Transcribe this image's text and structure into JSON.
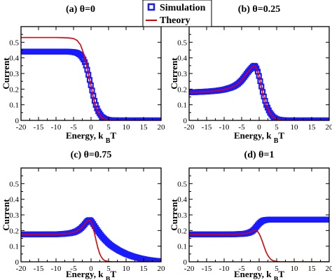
{
  "colors": {
    "simulation": "#1a1aff",
    "theory": "#e00000",
    "frame": "#000000",
    "background": "#ffffff"
  },
  "legend": {
    "simulation_label": "Simulation",
    "theory_label": "Theory",
    "simulation_marker": "open-square",
    "theory_marker": "line"
  },
  "chart_data": [
    {
      "type": "line",
      "title": "(a) θ=0",
      "xlabel": "Energy, kBT",
      "ylabel": "Current",
      "xlim": [
        -20,
        20
      ],
      "ylim": [
        0,
        0.6
      ],
      "xticks": [
        -20,
        -15,
        -10,
        -5,
        0,
        5,
        10,
        15,
        20
      ],
      "yticks": [
        0,
        0.1,
        0.2,
        0.3,
        0.4,
        0.5
      ],
      "grid": false,
      "series": [
        {
          "name": "Simulation",
          "style": "marker",
          "x": [
            -20,
            -18,
            -16,
            -14,
            -12,
            -10,
            -8,
            -6,
            -5,
            -4,
            -3,
            -2,
            -1.5,
            -1,
            -0.5,
            0,
            0.5,
            1,
            1.5,
            2,
            3,
            4,
            5,
            6,
            8,
            10,
            12,
            14,
            16,
            18,
            20
          ],
          "y": [
            0.44,
            0.44,
            0.44,
            0.44,
            0.44,
            0.44,
            0.44,
            0.439,
            0.437,
            0.432,
            0.418,
            0.385,
            0.355,
            0.316,
            0.268,
            0.22,
            0.172,
            0.125,
            0.088,
            0.06,
            0.025,
            0.009,
            0.003,
            0.001,
            0,
            0,
            0,
            0,
            0,
            0,
            0
          ]
        },
        {
          "name": "Theory",
          "style": "line",
          "x": [
            -20,
            -18,
            -16,
            -14,
            -12,
            -10,
            -8,
            -6,
            -5,
            -4,
            -3,
            -2,
            -1.5,
            -1,
            -0.5,
            0,
            0.5,
            1,
            1.5,
            2,
            3,
            4,
            5,
            6,
            8,
            10,
            12,
            14,
            16,
            18,
            20
          ],
          "y": [
            0.53,
            0.53,
            0.53,
            0.53,
            0.53,
            0.53,
            0.529,
            0.527,
            0.523,
            0.512,
            0.483,
            0.42,
            0.375,
            0.323,
            0.27,
            0.22,
            0.165,
            0.118,
            0.08,
            0.052,
            0.02,
            0.007,
            0.002,
            0.001,
            0,
            0,
            0,
            0,
            0,
            0,
            0
          ]
        }
      ]
    },
    {
      "type": "line",
      "title": "(b) θ=0.25",
      "xlabel": "Energy, kBT",
      "ylabel": "Current",
      "xlim": [
        -20,
        20
      ],
      "ylim": [
        0,
        0.6
      ],
      "xticks": [
        -20,
        -15,
        -10,
        -5,
        0,
        5,
        10,
        15,
        20
      ],
      "yticks": [
        0,
        0.1,
        0.2,
        0.3,
        0.4,
        0.5
      ],
      "grid": false,
      "series": [
        {
          "name": "Simulation",
          "style": "marker",
          "x": [
            -20,
            -18,
            -16,
            -14,
            -12,
            -10,
            -8,
            -7,
            -6,
            -5,
            -4,
            -3,
            -2,
            -1.5,
            -1,
            -0.5,
            0,
            0.5,
            1,
            1.5,
            2,
            3,
            4,
            5,
            6,
            8,
            10,
            12,
            14,
            16,
            18,
            20
          ],
          "y": [
            0.18,
            0.181,
            0.183,
            0.186,
            0.19,
            0.197,
            0.21,
            0.22,
            0.235,
            0.256,
            0.285,
            0.315,
            0.34,
            0.35,
            0.345,
            0.32,
            0.28,
            0.232,
            0.182,
            0.14,
            0.102,
            0.052,
            0.022,
            0.008,
            0.003,
            0,
            0,
            0,
            0,
            0,
            0,
            0
          ]
        },
        {
          "name": "Theory",
          "style": "line",
          "x": [
            -20,
            -18,
            -16,
            -14,
            -12,
            -10,
            -8,
            -7,
            -6,
            -5,
            -4,
            -3,
            -2,
            -1.5,
            -1,
            -0.5,
            0,
            0.5,
            1,
            1.5,
            2,
            3,
            4,
            5,
            6,
            8,
            10,
            12,
            14,
            16,
            18,
            20
          ],
          "y": [
            0.18,
            0.181,
            0.183,
            0.186,
            0.19,
            0.197,
            0.21,
            0.22,
            0.235,
            0.256,
            0.285,
            0.315,
            0.34,
            0.348,
            0.342,
            0.318,
            0.278,
            0.23,
            0.18,
            0.138,
            0.1,
            0.05,
            0.021,
            0.008,
            0.003,
            0,
            0,
            0,
            0,
            0,
            0,
            0
          ]
        }
      ]
    },
    {
      "type": "line",
      "title": "(c) θ=0.75",
      "xlabel": "Energy, kBT",
      "ylabel": "Current",
      "xlim": [
        -20,
        20
      ],
      "ylim": [
        0,
        0.6
      ],
      "xticks": [
        -20,
        -15,
        -10,
        -5,
        0,
        5,
        10,
        15,
        20
      ],
      "yticks": [
        0,
        0.1,
        0.2,
        0.3,
        0.4,
        0.5
      ],
      "grid": false,
      "series": [
        {
          "name": "Simulation",
          "style": "marker",
          "x": [
            -20,
            -18,
            -16,
            -14,
            -12,
            -10,
            -8,
            -6,
            -5,
            -4,
            -3,
            -2,
            -1.5,
            -1,
            -0.5,
            0,
            0.5,
            1,
            2,
            3,
            4,
            5,
            6,
            8,
            10,
            12,
            14,
            16,
            18,
            20
          ],
          "y": [
            0.175,
            0.175,
            0.175,
            0.175,
            0.176,
            0.176,
            0.178,
            0.183,
            0.188,
            0.197,
            0.212,
            0.235,
            0.25,
            0.262,
            0.268,
            0.262,
            0.247,
            0.228,
            0.195,
            0.165,
            0.14,
            0.118,
            0.1,
            0.072,
            0.05,
            0.034,
            0.022,
            0.013,
            0.007,
            0.003
          ]
        },
        {
          "name": "Theory",
          "style": "line",
          "x": [
            -20,
            -18,
            -16,
            -14,
            -12,
            -10,
            -8,
            -6,
            -5,
            -4,
            -3,
            -2,
            -1.5,
            -1,
            -0.5,
            0,
            0.5,
            1,
            1.5,
            2,
            2.5,
            3,
            3.5,
            4,
            5,
            6,
            8,
            10,
            12,
            14,
            16,
            18,
            20
          ],
          "y": [
            0.175,
            0.175,
            0.175,
            0.175,
            0.176,
            0.176,
            0.178,
            0.183,
            0.188,
            0.197,
            0.212,
            0.235,
            0.25,
            0.262,
            0.265,
            0.255,
            0.225,
            0.18,
            0.13,
            0.085,
            0.05,
            0.028,
            0.014,
            0.007,
            0.002,
            0,
            0,
            0,
            0,
            0,
            0,
            0,
            0
          ]
        }
      ]
    },
    {
      "type": "line",
      "title": "(d) θ=1",
      "xlabel": "Energy, kBT",
      "ylabel": "Current",
      "xlim": [
        -20,
        20
      ],
      "ylim": [
        0,
        0.6
      ],
      "xticks": [
        -20,
        -15,
        -10,
        -5,
        0,
        5,
        10,
        15,
        20
      ],
      "yticks": [
        0,
        0.1,
        0.2,
        0.3,
        0.4,
        0.5
      ],
      "grid": false,
      "series": [
        {
          "name": "Simulation",
          "style": "marker",
          "x": [
            -20,
            -18,
            -16,
            -14,
            -12,
            -10,
            -8,
            -6,
            -5,
            -4,
            -3,
            -2,
            -1.5,
            -1,
            -0.5,
            0,
            0.5,
            1,
            1.5,
            2,
            3,
            4,
            5,
            6,
            8,
            10,
            12,
            14,
            16,
            18,
            20
          ],
          "y": [
            0.175,
            0.175,
            0.175,
            0.175,
            0.175,
            0.175,
            0.176,
            0.177,
            0.178,
            0.18,
            0.185,
            0.195,
            0.205,
            0.218,
            0.232,
            0.245,
            0.255,
            0.262,
            0.266,
            0.268,
            0.27,
            0.27,
            0.27,
            0.27,
            0.27,
            0.27,
            0.27,
            0.27,
            0.27,
            0.27,
            0.27
          ]
        },
        {
          "name": "Theory",
          "style": "line",
          "x": [
            -20,
            -18,
            -16,
            -14,
            -12,
            -10,
            -8,
            -6,
            -5,
            -4,
            -3,
            -2,
            -1.5,
            -1,
            -0.5,
            0,
            0.5,
            1,
            1.5,
            2,
            2.5,
            3,
            3.5,
            4,
            5,
            6,
            8,
            10,
            12,
            14,
            16,
            18,
            20
          ],
          "y": [
            0.175,
            0.175,
            0.175,
            0.175,
            0.175,
            0.175,
            0.176,
            0.177,
            0.178,
            0.18,
            0.185,
            0.195,
            0.2,
            0.2,
            0.195,
            0.18,
            0.155,
            0.125,
            0.092,
            0.062,
            0.04,
            0.024,
            0.013,
            0.007,
            0.002,
            0,
            0,
            0,
            0,
            0,
            0,
            0,
            0
          ]
        }
      ]
    }
  ]
}
